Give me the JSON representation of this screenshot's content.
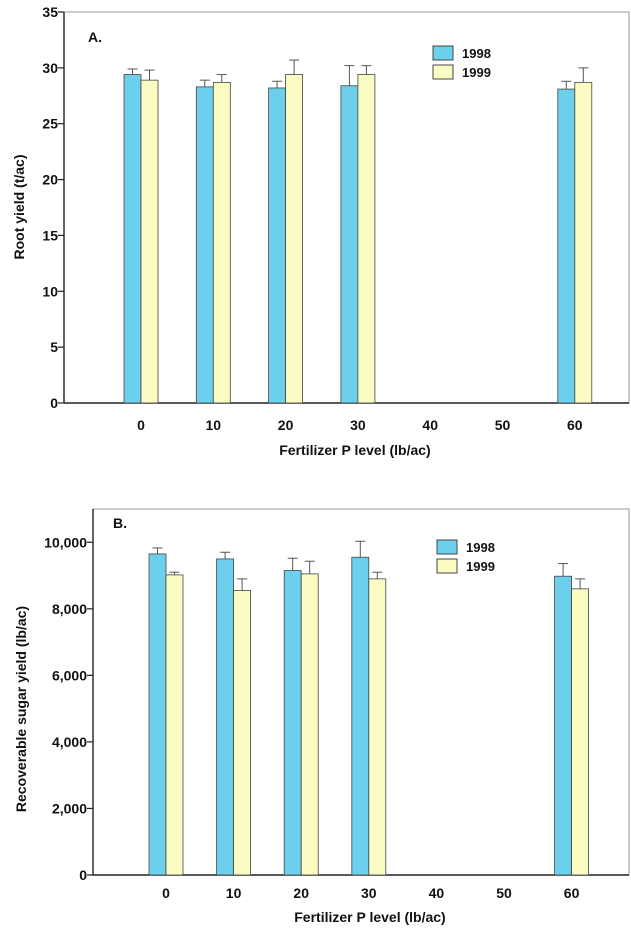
{
  "colors": {
    "series_1998": "#6ccfec",
    "series_1999": "#fbfbc4",
    "bar_stroke": "#444444",
    "axis": "#222222"
  },
  "chart_data": [
    {
      "type": "bar",
      "panel_label": "A.",
      "categories": [
        "0",
        "10",
        "20",
        "30",
        "40",
        "50",
        "60"
      ],
      "xlabel": "Fertilizer P level (lb/ac)",
      "ylabel": "Root yield (t/ac)",
      "ylim": [
        0,
        35
      ],
      "yticks": [
        0,
        5,
        10,
        15,
        20,
        25,
        30,
        35
      ],
      "ytick_labels": [
        "0",
        "5",
        "10",
        "15",
        "20",
        "25",
        "30",
        "35"
      ],
      "legend_position": "top-right",
      "series": [
        {
          "name": "1998",
          "values": [
            29.4,
            28.3,
            28.2,
            28.4,
            null,
            null,
            28.1
          ],
          "errors": [
            0.5,
            0.6,
            0.6,
            1.8,
            null,
            null,
            0.7
          ]
        },
        {
          "name": "1999",
          "values": [
            28.9,
            28.7,
            29.4,
            29.4,
            null,
            null,
            28.7
          ],
          "errors": [
            0.9,
            0.7,
            1.3,
            0.8,
            null,
            null,
            1.3
          ]
        }
      ]
    },
    {
      "type": "bar",
      "panel_label": "B.",
      "categories": [
        "0",
        "10",
        "20",
        "30",
        "40",
        "50",
        "60"
      ],
      "xlabel": "Fertilizer P level (lb/ac)",
      "ylabel": "Recoverable sugar yield (lb/ac)",
      "ylim": [
        0,
        11000
      ],
      "yticks": [
        0,
        2000,
        4000,
        6000,
        8000,
        10000
      ],
      "ytick_labels": [
        "0",
        "2,000",
        "4,000",
        "6,000",
        "8,000",
        "10,000"
      ],
      "legend_position": "top-right",
      "series": [
        {
          "name": "1998",
          "values": [
            9650,
            9500,
            9150,
            9550,
            null,
            null,
            8980
          ],
          "errors": [
            180,
            200,
            370,
            480,
            null,
            null,
            380
          ]
        },
        {
          "name": "1999",
          "values": [
            9020,
            8550,
            9050,
            8900,
            null,
            null,
            8600
          ],
          "errors": [
            80,
            350,
            380,
            200,
            null,
            null,
            300
          ]
        }
      ]
    }
  ]
}
